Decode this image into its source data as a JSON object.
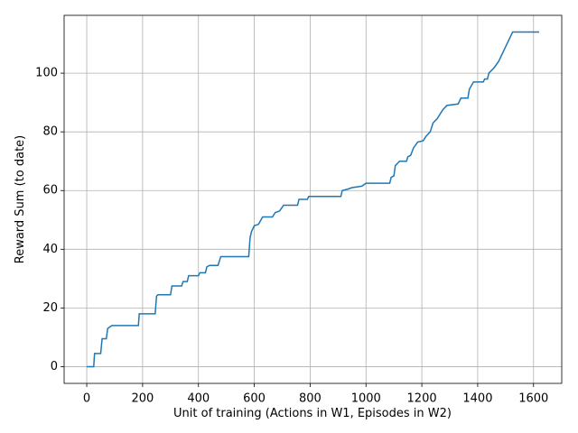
{
  "chart_data": {
    "type": "line",
    "xlabel": "Unit of training (Actions in W1, Episodes in W2)",
    "ylabel": "Reward Sum (to date)",
    "x": [
      0,
      25,
      28,
      50,
      55,
      70,
      75,
      90,
      185,
      188,
      245,
      250,
      255,
      300,
      305,
      340,
      345,
      360,
      365,
      400,
      405,
      425,
      430,
      440,
      470,
      480,
      580,
      585,
      590,
      600,
      615,
      630,
      665,
      675,
      690,
      705,
      755,
      760,
      790,
      795,
      910,
      915,
      935,
      950,
      985,
      1000,
      1085,
      1090,
      1100,
      1105,
      1120,
      1145,
      1150,
      1160,
      1170,
      1185,
      1205,
      1215,
      1230,
      1240,
      1255,
      1275,
      1290,
      1330,
      1340,
      1365,
      1370,
      1385,
      1420,
      1425,
      1435,
      1440,
      1460,
      1475,
      1490,
      1500,
      1515,
      1525,
      1560,
      1620
    ],
    "series": [
      {
        "name": "reward",
        "color": "#1f77b4",
        "values": [
          0,
          0,
          4.5,
          4.5,
          9.5,
          9.5,
          13,
          14,
          14,
          18,
          18,
          24,
          24.5,
          24.5,
          27.5,
          27.5,
          29,
          29,
          31,
          31,
          32,
          32,
          34,
          34.5,
          34.5,
          37.5,
          37.5,
          44,
          46,
          48,
          48.5,
          51,
          51,
          52.5,
          53,
          55,
          55,
          57,
          57,
          58,
          58,
          60,
          60.5,
          61,
          61.5,
          62.5,
          62.5,
          64.5,
          65,
          68.5,
          70,
          70,
          71.5,
          72,
          74.5,
          76.5,
          77,
          78.5,
          80,
          83,
          84.5,
          87.5,
          89,
          89.5,
          91.5,
          91.5,
          94.5,
          97,
          97,
          98,
          98,
          100,
          102,
          104,
          107,
          109,
          112,
          114,
          114,
          114
        ]
      }
    ],
    "xlim": [
      -81,
      1701
    ],
    "ylim": [
      -5.7,
      119.7
    ],
    "xticks": [
      0,
      200,
      400,
      600,
      800,
      1000,
      1200,
      1400,
      1600
    ],
    "yticks": [
      0,
      20,
      40,
      60,
      80,
      100
    ],
    "grid": true
  }
}
